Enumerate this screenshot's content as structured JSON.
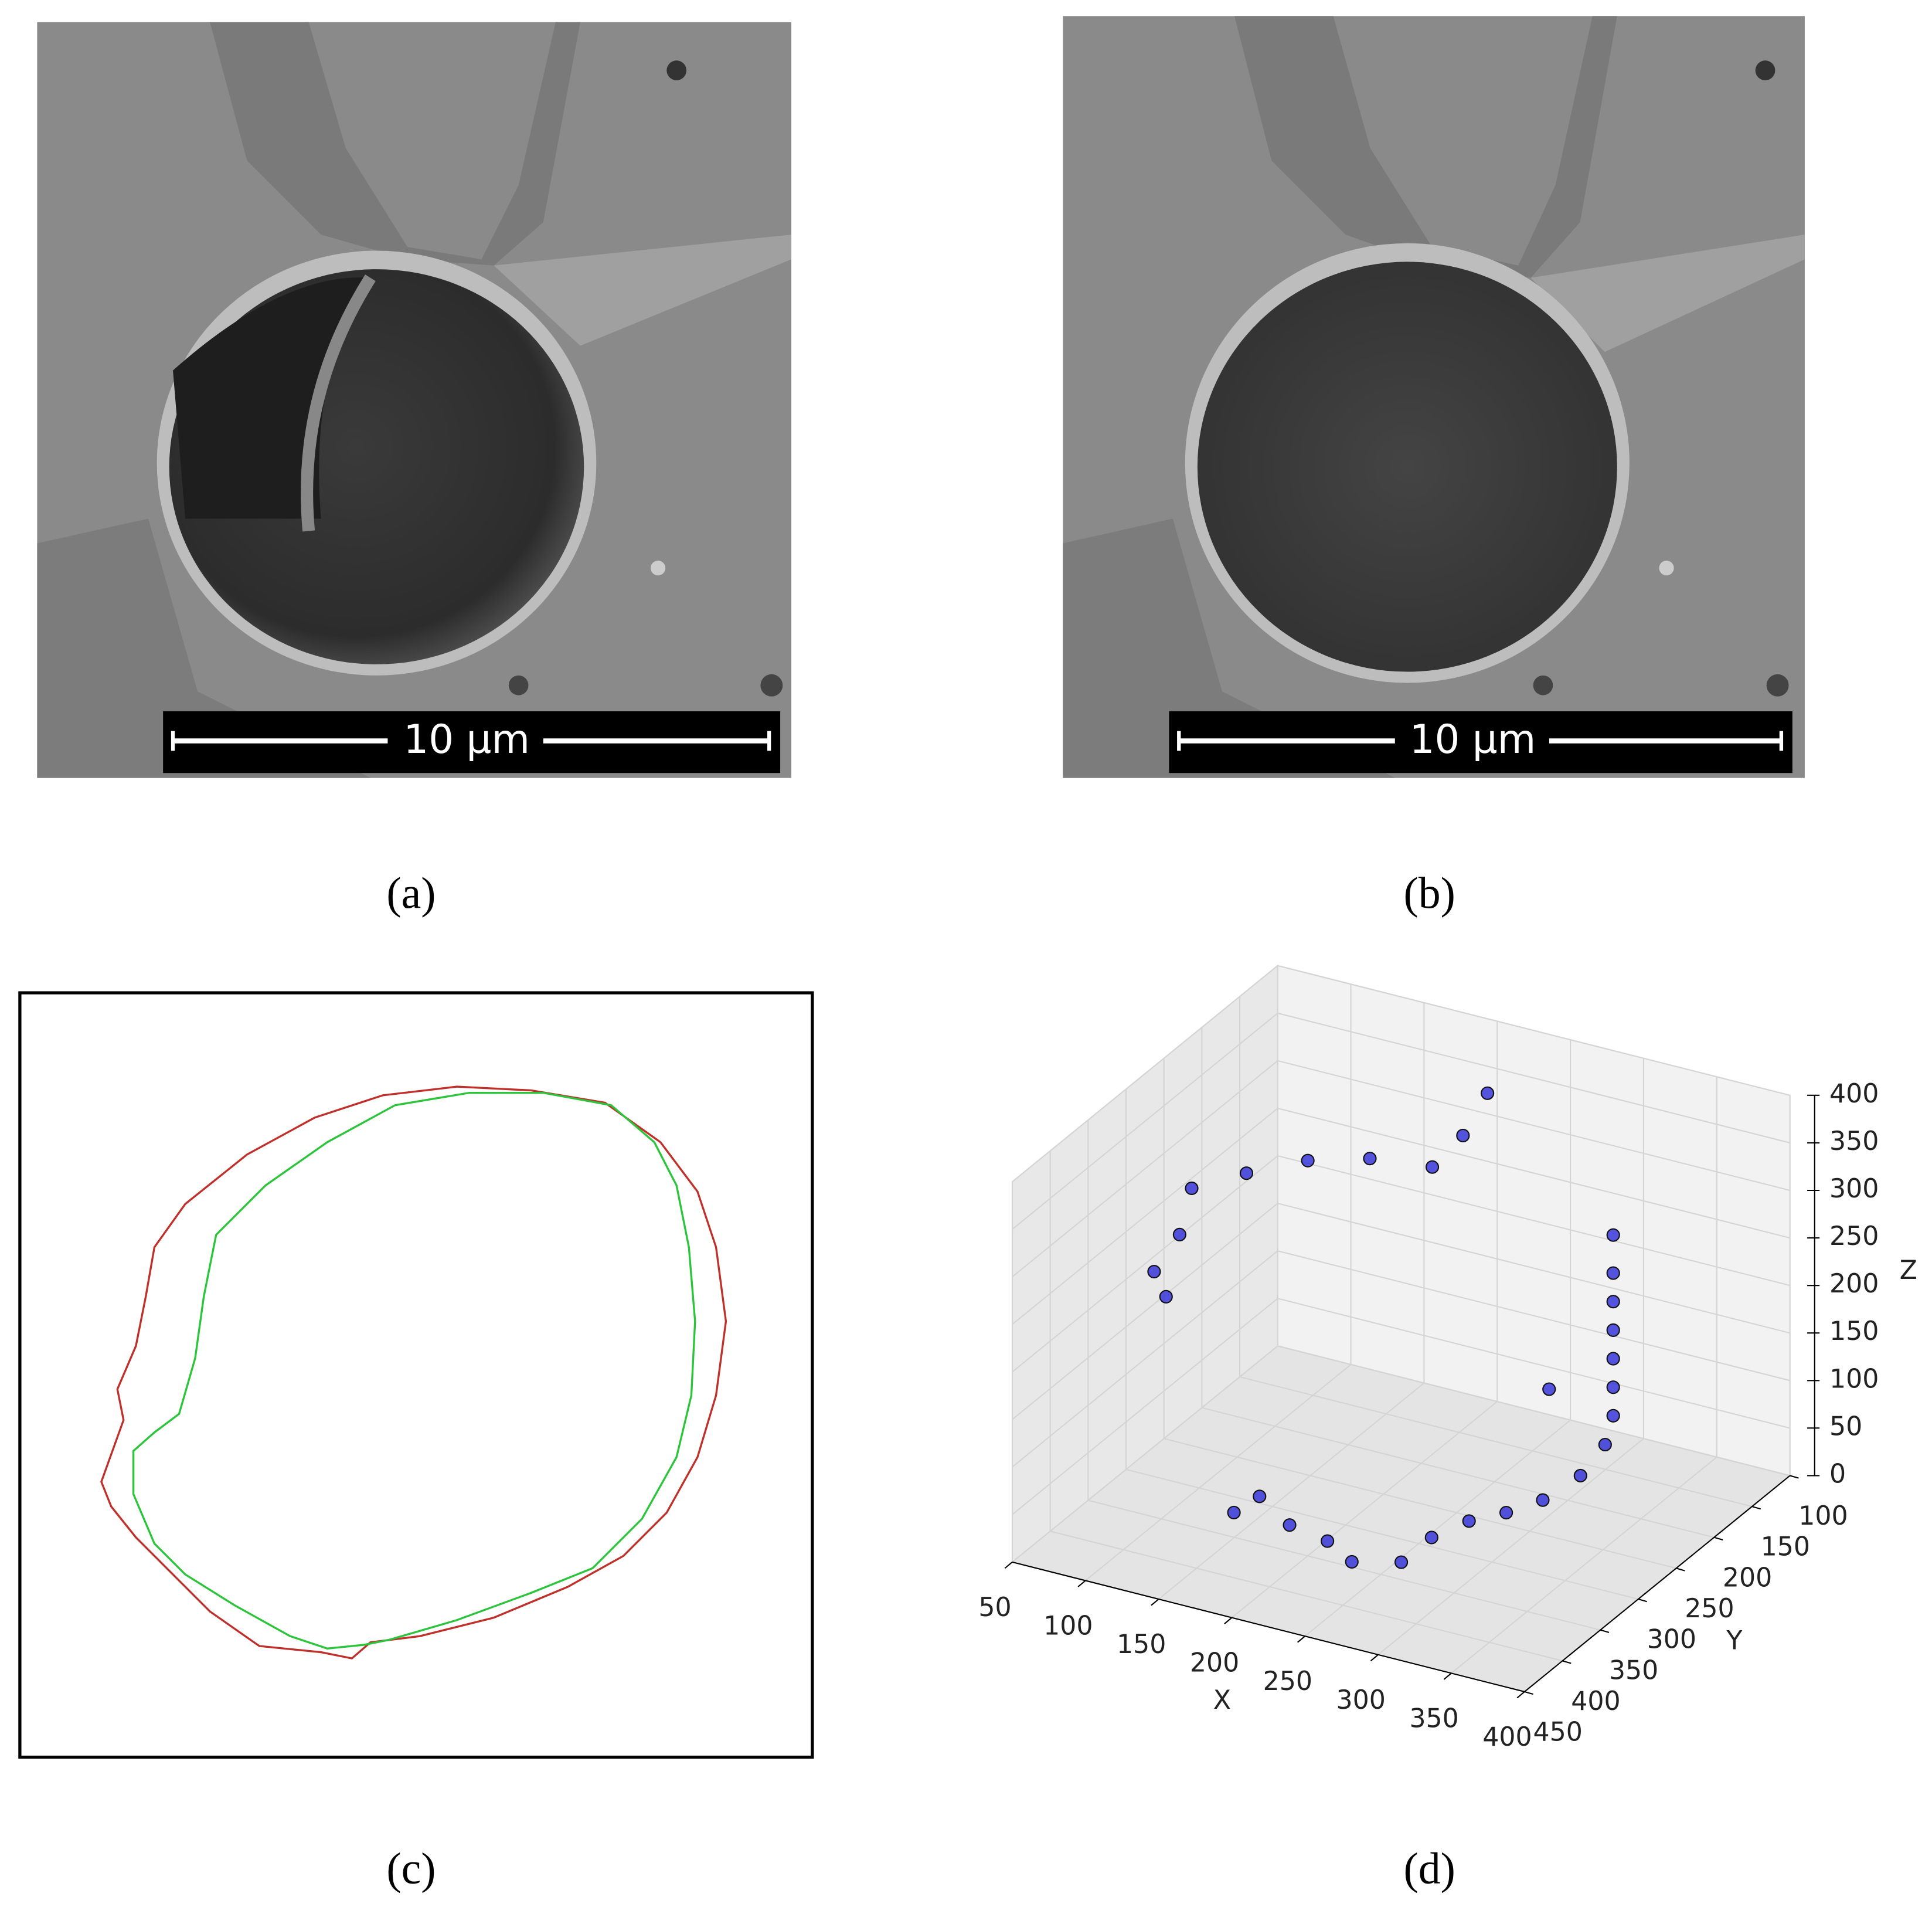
{
  "panels": [
    {
      "label": "(a)"
    },
    {
      "label": "(b)"
    },
    {
      "label": "(c)"
    },
    {
      "label": "(d)"
    }
  ],
  "scale_bars": [
    "10 µm",
    "10 µm"
  ],
  "chart_data": {
    "type": "scatter3d",
    "xlabel": "X",
    "ylabel": "Y",
    "zlabel": "Z",
    "xlim": [
      50,
      400
    ],
    "ylim": [
      100,
      450
    ],
    "zlim": [
      0,
      400
    ],
    "xticks": [
      50,
      100,
      150,
      200,
      250,
      300,
      350,
      400
    ],
    "yticks": [
      100,
      150,
      200,
      250,
      300,
      350,
      400,
      450
    ],
    "zticks": [
      0,
      50,
      100,
      150,
      200,
      250,
      300,
      350,
      400
    ],
    "grid": true,
    "series": [
      {
        "color": "#2a2ad8",
        "x": [
          146,
          149,
          183,
          213,
          239,
          265,
          265,
          274,
          288,
          299,
          303,
          296,
          300,
          300,
          300,
          300,
          300,
          300,
          300,
          78,
          82,
          98,
          99,
          124,
          154,
          185,
          223,
          231,
          241,
          280
        ],
        "y": [
          343,
          315,
          341,
          349,
          367,
          352,
          312,
          280,
          258,
          231,
          189,
          143,
          140,
          140,
          140,
          140,
          140,
          140,
          140,
          317,
          309,
          322,
          308,
          284,
          261,
          239,
          230,
          205,
          192,
          186
        ],
        "z": [
          20,
          20,
          20,
          20,
          20,
          20,
          20,
          20,
          20,
          20,
          20,
          20,
          50,
          80,
          110,
          140,
          170,
          200,
          240,
          230,
          200,
          280,
          320,
          330,
          340,
          340,
          340,
          360,
          400,
          100
        ]
      }
    ]
  }
}
